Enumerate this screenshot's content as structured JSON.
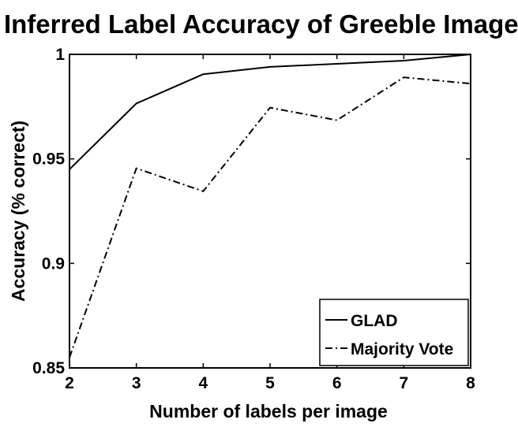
{
  "chart_data": {
    "type": "line",
    "title": "Inferred Label Accuracy of Greeble Images",
    "xlabel": "Number of labels per image",
    "ylabel": "Accuracy (% correct)",
    "x": [
      2,
      3,
      4,
      5,
      6,
      7,
      8
    ],
    "xlim": [
      2,
      8
    ],
    "ylim": [
      0.85,
      1
    ],
    "xticks": [
      "2",
      "3",
      "4",
      "5",
      "6",
      "7",
      "8"
    ],
    "yticks": [
      {
        "value": 0.85,
        "label": "0.85"
      },
      {
        "value": 0.9,
        "label": "0.9"
      },
      {
        "value": 0.95,
        "label": "0.95"
      },
      {
        "value": 1,
        "label": "1"
      }
    ],
    "series": [
      {
        "name": "GLAD",
        "style": "solid",
        "color": "#000000",
        "values": [
          0.945,
          0.9765,
          0.9905,
          0.994,
          0.9955,
          0.997,
          1.0
        ]
      },
      {
        "name": "Majority Vote",
        "style": "dash-dot",
        "color": "#000000",
        "values": [
          0.855,
          0.9455,
          0.9345,
          0.9745,
          0.9685,
          0.989,
          0.986
        ]
      }
    ],
    "legend_position": "bottom-right",
    "grid": false
  }
}
